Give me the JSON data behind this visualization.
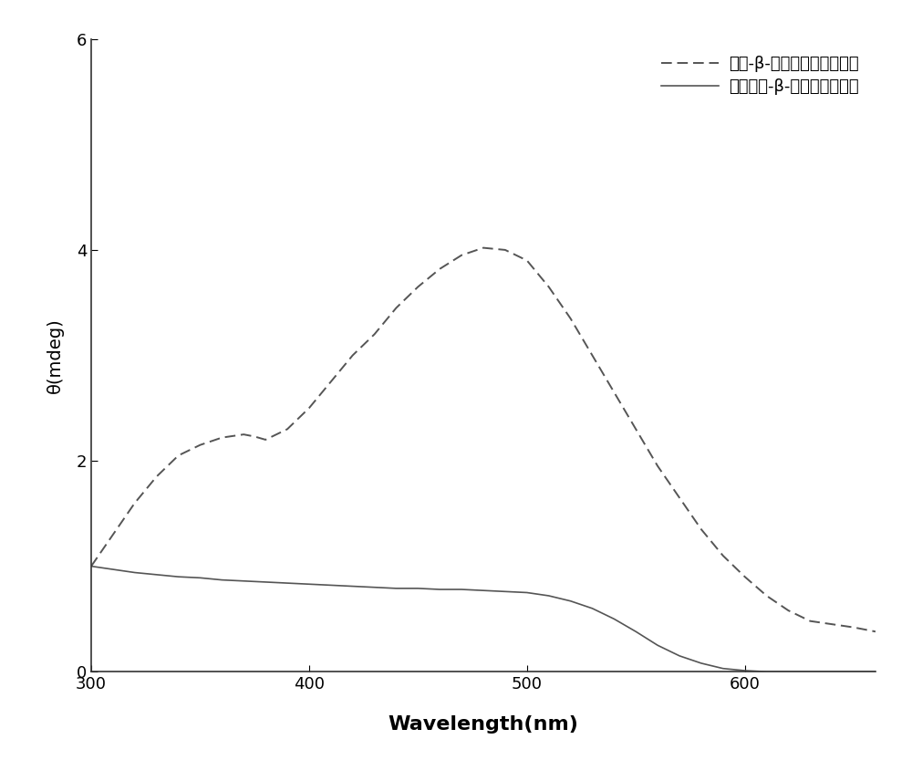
{
  "title": "",
  "xlabel": "Wavelength(nm)",
  "ylabel": "θ(mdeg)",
  "xlim": [
    300,
    660
  ],
  "ylim": [
    0,
    6
  ],
  "yticks": [
    0,
    2,
    4,
    6
  ],
  "xticks": [
    300,
    400,
    500,
    600
  ],
  "legend1": "甲基-β-环糖精掺杂的聚苯胺",
  "legend2": "不加甲基-β-环糖精的聚苯胺",
  "line_color": "#555555",
  "dashed_x": [
    300,
    310,
    320,
    330,
    340,
    350,
    360,
    370,
    375,
    380,
    390,
    400,
    410,
    420,
    430,
    440,
    450,
    460,
    470,
    480,
    490,
    500,
    510,
    520,
    530,
    540,
    550,
    560,
    570,
    580,
    590,
    600,
    610,
    620,
    630,
    640,
    650,
    660
  ],
  "dashed_y": [
    1.0,
    1.3,
    1.6,
    1.85,
    2.05,
    2.15,
    2.22,
    2.25,
    2.23,
    2.2,
    2.3,
    2.5,
    2.75,
    3.0,
    3.2,
    3.45,
    3.65,
    3.82,
    3.95,
    4.02,
    4.0,
    3.9,
    3.65,
    3.35,
    3.0,
    2.65,
    2.3,
    1.95,
    1.65,
    1.35,
    1.1,
    0.9,
    0.72,
    0.58,
    0.48,
    0.45,
    0.42,
    0.38
  ],
  "solid_x": [
    300,
    310,
    320,
    330,
    340,
    350,
    360,
    370,
    380,
    390,
    400,
    410,
    420,
    430,
    440,
    450,
    460,
    470,
    480,
    490,
    500,
    510,
    520,
    530,
    540,
    550,
    560,
    570,
    580,
    590,
    600,
    610,
    620,
    630,
    640,
    650,
    660
  ],
  "solid_y": [
    1.0,
    0.97,
    0.94,
    0.92,
    0.9,
    0.89,
    0.87,
    0.86,
    0.85,
    0.84,
    0.83,
    0.82,
    0.81,
    0.8,
    0.79,
    0.79,
    0.78,
    0.78,
    0.77,
    0.76,
    0.75,
    0.72,
    0.67,
    0.6,
    0.5,
    0.38,
    0.25,
    0.15,
    0.08,
    0.03,
    0.01,
    0.0,
    0.0,
    0.0,
    0.0,
    0.0,
    0.0
  ],
  "dot_grid_color": "#d8d8d8"
}
